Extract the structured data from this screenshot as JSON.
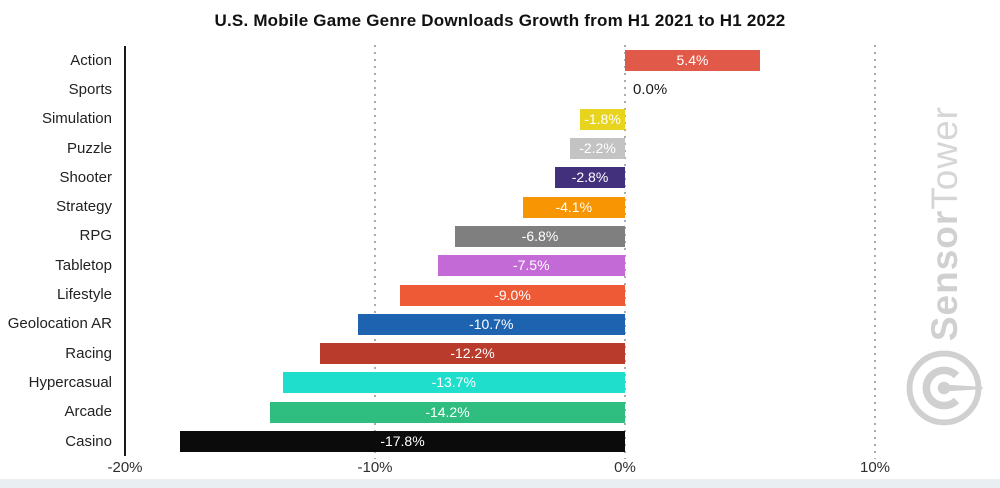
{
  "title": "U.S. Mobile Game Genre Downloads Growth from H1 2021 to H1 2022",
  "chart_data": {
    "type": "bar",
    "orientation": "horizontal",
    "title": "U.S. Mobile Game Genre Downloads Growth from H1 2021 to H1 2022",
    "xlabel": "",
    "ylabel": "",
    "legend": "none",
    "categories": [
      "Action",
      "Sports",
      "Simulation",
      "Puzzle",
      "Shooter",
      "Strategy",
      "RPG",
      "Tabletop",
      "Lifestyle",
      "Geolocation AR",
      "Racing",
      "Hypercasual",
      "Arcade",
      "Casino"
    ],
    "values": [
      5.4,
      0.0,
      -1.8,
      -2.2,
      -2.8,
      -4.1,
      -6.8,
      -7.5,
      -9.0,
      -10.7,
      -12.2,
      -13.7,
      -14.2,
      -17.8
    ],
    "labels": [
      "5.4%",
      "0.0%",
      "-1.8%",
      "-2.2%",
      "-2.8%",
      "-4.1%",
      "-6.8%",
      "-7.5%",
      "-9.0%",
      "-10.7%",
      "-12.2%",
      "-13.7%",
      "-14.2%",
      "-17.8%"
    ],
    "bar_colors": [
      "#e15948",
      "none",
      "#e8d41e",
      "#c3c3c3",
      "#43307d",
      "#f79502",
      "#7f7f7f",
      "#c46ad6",
      "#ed5a35",
      "#1d63af",
      "#b83b2c",
      "#1fdecb",
      "#2fbe80",
      "#0b0b0b"
    ],
    "value_label_color_on_bar": "#ffffff",
    "zero_label_color": "#1a1a1a",
    "xlim": [
      -20,
      10
    ],
    "x_ticks": [
      {
        "value": -20,
        "label": "-20%"
      },
      {
        "value": -10,
        "label": "-10%"
      },
      {
        "value": 0,
        "label": "0%"
      },
      {
        "value": 10,
        "label": "10%"
      }
    ],
    "grid": {
      "style": "dotted-vertical",
      "color": "#ababab",
      "axis_line_color": "#1a1a1a"
    }
  },
  "watermark": {
    "brand_primary": "Sensor",
    "brand_secondary": "Tower",
    "icon": "sensortower-logo-icon",
    "color": "#d0d0d0"
  }
}
